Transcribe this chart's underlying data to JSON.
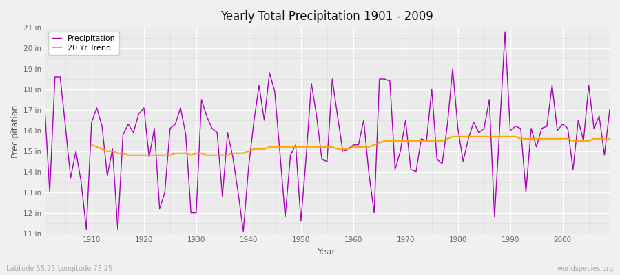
{
  "title": "Yearly Total Precipitation 1901 - 2009",
  "xlabel": "Year",
  "ylabel": "Precipitation",
  "ylabel_note": "Latitude 55.75 Longitude 73.25",
  "watermark": "worldspecies.org",
  "years": [
    1901,
    1902,
    1903,
    1904,
    1905,
    1906,
    1907,
    1908,
    1909,
    1910,
    1911,
    1912,
    1913,
    1914,
    1915,
    1916,
    1917,
    1918,
    1919,
    1920,
    1921,
    1922,
    1923,
    1924,
    1925,
    1926,
    1927,
    1928,
    1929,
    1930,
    1931,
    1932,
    1933,
    1934,
    1935,
    1936,
    1937,
    1938,
    1939,
    1940,
    1941,
    1942,
    1943,
    1944,
    1945,
    1946,
    1947,
    1948,
    1949,
    1950,
    1951,
    1952,
    1953,
    1954,
    1955,
    1956,
    1957,
    1958,
    1959,
    1960,
    1961,
    1962,
    1963,
    1964,
    1965,
    1966,
    1967,
    1968,
    1969,
    1970,
    1971,
    1972,
    1973,
    1974,
    1975,
    1976,
    1977,
    1978,
    1979,
    1980,
    1981,
    1982,
    1983,
    1984,
    1985,
    1986,
    1987,
    1988,
    1989,
    1990,
    1991,
    1992,
    1993,
    1994,
    1995,
    1996,
    1997,
    1998,
    1999,
    2000,
    2001,
    2002,
    2003,
    2004,
    2005,
    2006,
    2007,
    2008,
    2009
  ],
  "precip": [
    17.3,
    13.0,
    18.6,
    18.6,
    16.2,
    13.7,
    15.0,
    13.5,
    11.2,
    16.4,
    17.1,
    16.2,
    13.8,
    15.1,
    11.2,
    15.8,
    16.3,
    15.9,
    16.8,
    17.1,
    14.7,
    16.1,
    12.2,
    13.0,
    16.1,
    16.3,
    17.1,
    15.8,
    12.0,
    12.0,
    17.5,
    16.7,
    16.1,
    15.9,
    12.8,
    15.9,
    14.7,
    13.0,
    11.1,
    14.2,
    16.4,
    18.2,
    16.5,
    18.8,
    17.9,
    14.9,
    11.8,
    14.8,
    15.3,
    11.6,
    14.7,
    18.3,
    16.7,
    14.6,
    14.5,
    18.5,
    16.7,
    15.0,
    15.1,
    15.3,
    15.3,
    16.5,
    13.9,
    12.0,
    18.5,
    18.5,
    18.4,
    14.1,
    15.0,
    16.5,
    14.1,
    14.0,
    15.6,
    15.5,
    18.0,
    14.6,
    14.4,
    16.3,
    19.0,
    16.1,
    14.5,
    15.6,
    16.4,
    15.9,
    16.1,
    17.5,
    11.8,
    16.2,
    20.8,
    16.0,
    16.2,
    16.1,
    13.0,
    16.1,
    15.2,
    16.1,
    16.2,
    18.2,
    16.0,
    16.3,
    16.1,
    14.1,
    16.5,
    15.5,
    18.2,
    16.1,
    16.7,
    14.8,
    17.0
  ],
  "trend_years": [
    1910,
    1911,
    1912,
    1913,
    1914,
    1915,
    1916,
    1917,
    1918,
    1919,
    1920,
    1921,
    1922,
    1923,
    1924,
    1925,
    1926,
    1927,
    1928,
    1929,
    1930,
    1931,
    1932,
    1933,
    1934,
    1935,
    1936,
    1937,
    1938,
    1939,
    1940,
    1941,
    1942,
    1943,
    1944,
    1945,
    1946,
    1947,
    1948,
    1949,
    1950,
    1951,
    1952,
    1953,
    1954,
    1955,
    1956,
    1957,
    1958,
    1959,
    1960,
    1961,
    1962,
    1963,
    1964,
    1965,
    1966,
    1967,
    1968,
    1969,
    1970,
    1971,
    1972,
    1973,
    1974,
    1975,
    1976,
    1977,
    1978,
    1979,
    1980,
    1981,
    1982,
    1983,
    1984,
    1985,
    1986,
    1987,
    1988,
    1989,
    1990,
    1991,
    1992,
    1993,
    1994,
    1995,
    1996,
    1997,
    1998,
    1999,
    2000,
    2001,
    2002,
    2003,
    2004,
    2005,
    2006,
    2007,
    2008,
    2009
  ],
  "trend": [
    15.3,
    15.2,
    15.1,
    15.0,
    15.0,
    14.9,
    14.9,
    14.8,
    14.8,
    14.8,
    14.8,
    14.8,
    14.8,
    14.8,
    14.8,
    14.8,
    14.9,
    14.9,
    14.9,
    14.8,
    14.9,
    14.9,
    14.8,
    14.8,
    14.8,
    14.8,
    14.8,
    14.9,
    14.9,
    14.9,
    15.0,
    15.1,
    15.1,
    15.1,
    15.2,
    15.2,
    15.2,
    15.2,
    15.2,
    15.2,
    15.2,
    15.2,
    15.2,
    15.2,
    15.2,
    15.2,
    15.2,
    15.1,
    15.1,
    15.1,
    15.2,
    15.2,
    15.2,
    15.2,
    15.3,
    15.4,
    15.5,
    15.5,
    15.5,
    15.5,
    15.5,
    15.5,
    15.5,
    15.5,
    15.5,
    15.5,
    15.5,
    15.5,
    15.6,
    15.7,
    15.7,
    15.7,
    15.7,
    15.7,
    15.7,
    15.7,
    15.7,
    15.7,
    15.7,
    15.7,
    15.7,
    15.7,
    15.6,
    15.6,
    15.6,
    15.6,
    15.6,
    15.6,
    15.6,
    15.6,
    15.6,
    15.6,
    15.5,
    15.5,
    15.5,
    15.5,
    15.6,
    15.6,
    15.6,
    15.6
  ],
  "precip_color": "#AA00BB",
  "trend_color": "#FFA500",
  "bg_color": "#F0F0F0",
  "plot_bg_color": "#EBEBEB",
  "grid_color": "#FFFFFF",
  "minor_grid_color": "#DDDDDD",
  "ylim": [
    11,
    21
  ],
  "ytick_labels": [
    "11 in",
    "12 in",
    "13 in",
    "14 in",
    "15 in",
    "16 in",
    "17 in",
    "18 in",
    "19 in",
    "20 in",
    "21 in"
  ],
  "ytick_values": [
    11,
    12,
    13,
    14,
    15,
    16,
    17,
    18,
    19,
    20,
    21
  ],
  "xlim": [
    1901,
    2009
  ]
}
